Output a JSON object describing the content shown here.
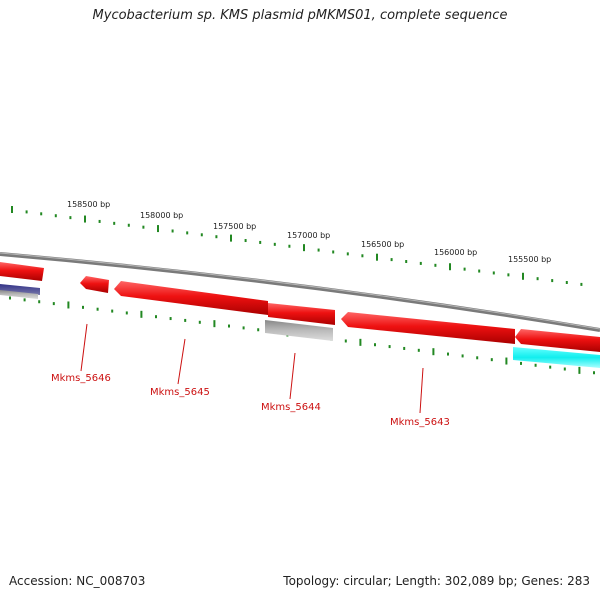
{
  "title": "Mycobacterium sp. KMS plasmid pMKMS01, complete sequence",
  "footer": {
    "accession": "Accession: NC_008703",
    "summary": "Topology: circular; Length: 302,089 bp; Genes: 283"
  },
  "scale_labels": [
    "158500 bp",
    "158000 bp",
    "157500 bp",
    "157000 bp",
    "156500 bp",
    "156000 bp",
    "155500 bp"
  ],
  "gene_labels": [
    "Mkms_5646",
    "Mkms_5645",
    "Mkms_5644",
    "Mkms_5643"
  ],
  "colors": {
    "gene_red": "#ee1111",
    "backbone": "#808080",
    "tick_green": "#228822",
    "label_red": "#cc1111",
    "gray_feature": "#aaaaaa",
    "cyan_feature": "#11eeee",
    "navy_feature": "#333388"
  }
}
